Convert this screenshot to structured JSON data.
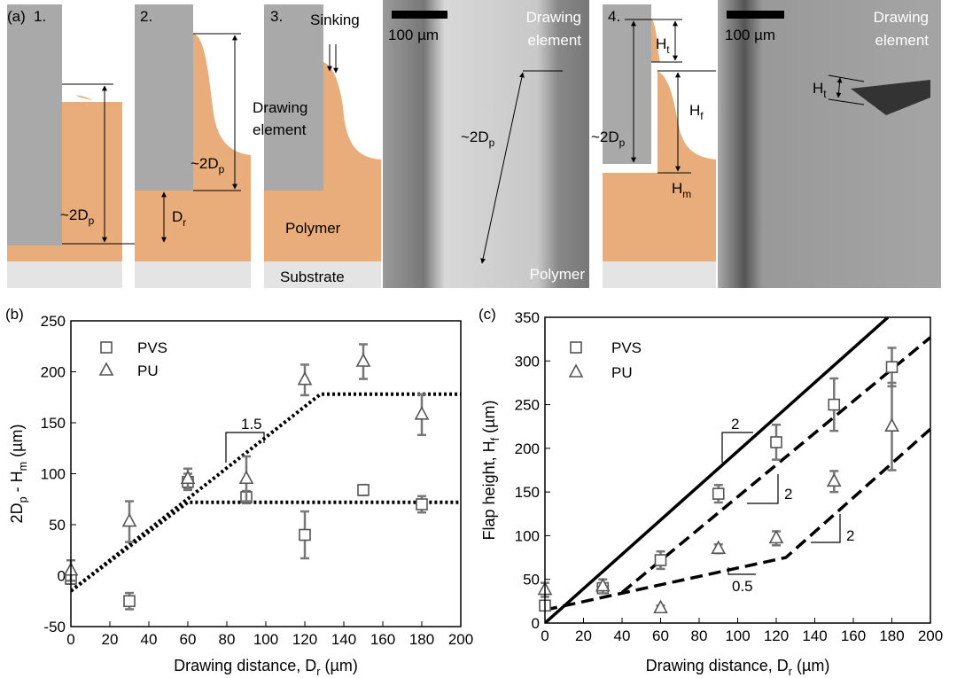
{
  "panel_a": {
    "label": "(a)",
    "steps": [
      "1.",
      "2.",
      "3.",
      "4."
    ],
    "two_dp": [
      "~2D",
      "p"
    ],
    "dr": [
      "D",
      "r"
    ],
    "drawing_element": [
      "Drawing",
      "element"
    ],
    "polymer": "Polymer",
    "substrate": "Substrate",
    "sinking": "Sinking",
    "scale_bar": "100 µm",
    "ht": [
      "H",
      "t"
    ],
    "hf": [
      "H",
      "f"
    ],
    "hm": [
      "H",
      "m"
    ]
  },
  "chart_data": [
    {
      "type": "scatter",
      "panel_label": "(b)",
      "xlabel": [
        {
          "t": "Drawing distance, D"
        },
        {
          "t": "r",
          "sub": true
        },
        {
          "t": " (µm)"
        }
      ],
      "ylabel": [
        {
          "t": "2D"
        },
        {
          "t": "p",
          "sub": true
        },
        {
          "t": " - H"
        },
        {
          "t": "m",
          "sub": true
        },
        {
          "t": " (µm)"
        }
      ],
      "xlim": [
        0,
        200
      ],
      "xticks": [
        0,
        20,
        40,
        60,
        80,
        100,
        120,
        140,
        160,
        180,
        200
      ],
      "ylim": [
        -50,
        250
      ],
      "yticks": [
        -50,
        0,
        50,
        100,
        150,
        200,
        250
      ],
      "series": [
        {
          "name": "PVS",
          "marker": "square",
          "color": "#555555",
          "x": [
            0,
            30,
            60,
            90,
            120,
            150,
            180
          ],
          "values": [
            -3,
            -25,
            92,
            77,
            40,
            84,
            70
          ],
          "errors": [
            5,
            8,
            8,
            6,
            23,
            5,
            8
          ]
        },
        {
          "name": "PU",
          "marker": "triangle",
          "color": "#555555",
          "x": [
            0,
            30,
            60,
            90,
            120,
            150,
            180
          ],
          "values": [
            5,
            53,
            95,
            95,
            192,
            210,
            158
          ],
          "errors": [
            10,
            20,
            10,
            22,
            15,
            17,
            20
          ]
        }
      ],
      "lines": [
        {
          "style": "dotted",
          "x": [
            0,
            60,
            200
          ],
          "values": [
            -15,
            72,
            72
          ]
        },
        {
          "style": "dotted",
          "x": [
            0,
            128,
            200
          ],
          "values": [
            -15,
            178,
            178
          ]
        }
      ],
      "annotations": [
        "1.5"
      ]
    },
    {
      "type": "scatter",
      "panel_label": "(c)",
      "xlabel": [
        {
          "t": "Drawing distance, D"
        },
        {
          "t": "r",
          "sub": true
        },
        {
          "t": " (µm)"
        }
      ],
      "ylabel": [
        {
          "t": "Flap height, H"
        },
        {
          "t": "f",
          "sub": true
        },
        {
          "t": " (µm)"
        }
      ],
      "xlim": [
        0,
        200
      ],
      "xticks": [
        0,
        20,
        40,
        60,
        80,
        100,
        120,
        140,
        160,
        180,
        200
      ],
      "ylim": [
        0,
        350
      ],
      "yticks": [
        0,
        50,
        100,
        150,
        200,
        250,
        300,
        350
      ],
      "series": [
        {
          "name": "PVS",
          "marker": "square",
          "color": "#555555",
          "x": [
            0,
            30,
            60,
            90,
            120,
            150,
            180
          ],
          "values": [
            20,
            40,
            72,
            148,
            207,
            250,
            293
          ],
          "errors": [
            5,
            5,
            10,
            10,
            20,
            30,
            22
          ]
        },
        {
          "name": "PU",
          "marker": "triangle",
          "color": "#555555",
          "x": [
            0,
            30,
            60,
            90,
            120,
            150,
            180
          ],
          "values": [
            38,
            42,
            17,
            85,
            97,
            162,
            225
          ],
          "errors": [
            8,
            8,
            3,
            5,
            8,
            12,
            50
          ]
        }
      ],
      "lines": [
        {
          "style": "solid",
          "x": [
            0,
            178
          ],
          "values": [
            0,
            350
          ]
        },
        {
          "style": "dashed",
          "x": [
            40,
            200
          ],
          "values": [
            35,
            327
          ]
        },
        {
          "style": "dashed",
          "x": [
            0,
            125,
            200
          ],
          "values": [
            15,
            75,
            222
          ]
        }
      ],
      "annotations": [
        "2",
        "2",
        "0.5",
        "2"
      ]
    }
  ]
}
